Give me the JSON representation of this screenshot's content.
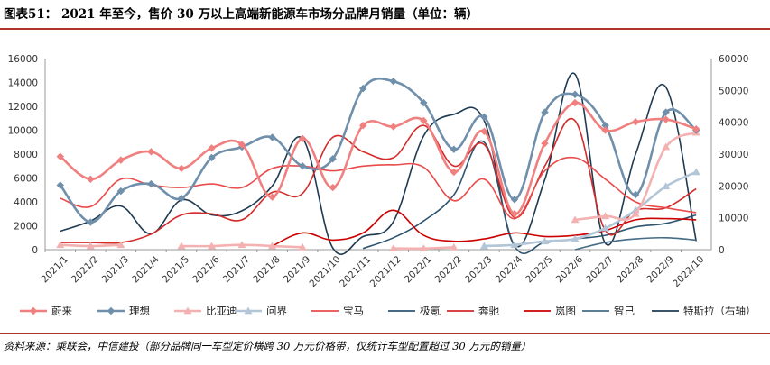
{
  "header": {
    "title": "图表51： 2021 年至今，售价 30 万以上高端新能源车市场分品牌月销量（单位：辆）"
  },
  "footer": {
    "source": "资料来源：乘联会，中信建投（部分品牌同一车型定价横跨 30 万元价格带，仅统计车型配置超过 30 万元的销量）"
  },
  "chart_data": {
    "type": "line",
    "title": "",
    "x": [
      "2021/1",
      "2021/2",
      "2021/3",
      "2021/4",
      "2021/5",
      "2021/6",
      "2021/7",
      "2021/8",
      "2021/9",
      "2021/10",
      "2021/11",
      "2021/12",
      "2022/1",
      "2022/2",
      "2022/3",
      "2022/4",
      "2022/5",
      "2022/6",
      "2022/7",
      "2022/8",
      "2022/9",
      "2022/10"
    ],
    "ylim_left": [
      0,
      16000
    ],
    "yticks_left": [
      "0",
      "2000",
      "4000",
      "6000",
      "8000",
      "10000",
      "12000",
      "14000",
      "16000"
    ],
    "ylim_right": [
      0,
      60000
    ],
    "yticks_right": [
      "0",
      "10000",
      "20000",
      "30000",
      "40000",
      "50000",
      "60000"
    ],
    "grid": false,
    "legend_position": "bottom",
    "series": [
      {
        "name": "蔚来",
        "color": "#f08080",
        "marker": "diamond",
        "axis": "left",
        "values": [
          7800,
          5900,
          7500,
          8200,
          6800,
          8500,
          8800,
          4400,
          9300,
          5200,
          10400,
          10300,
          10800,
          6500,
          9900,
          3000,
          8900,
          12300,
          10000,
          10700,
          10900,
          10100
        ]
      },
      {
        "name": "理想",
        "color": "#6f8faa",
        "marker": "diamond",
        "axis": "left",
        "values": [
          5400,
          2300,
          4900,
          5500,
          4300,
          7700,
          8600,
          9400,
          7000,
          7600,
          13500,
          14100,
          12300,
          8400,
          11100,
          4200,
          11500,
          13000,
          10400,
          4600,
          11500,
          10000
        ]
      },
      {
        "name": "比亚迪",
        "color": "#f4b1b1",
        "marker": "triangle",
        "axis": "left",
        "values": [
          400,
          300,
          400,
          null,
          300,
          300,
          400,
          300,
          200,
          null,
          null,
          100,
          100,
          200,
          null,
          null,
          null,
          2500,
          2800,
          3000,
          8600,
          9800
        ]
      },
      {
        "name": "问界",
        "color": "#b3c6d8",
        "marker": "triangle",
        "axis": "left",
        "values": [
          null,
          null,
          null,
          null,
          null,
          null,
          null,
          null,
          null,
          null,
          null,
          null,
          null,
          null,
          300,
          400,
          700,
          900,
          1800,
          3300,
          5300,
          6500
        ]
      },
      {
        "name": "宝马",
        "color": "#e94b4b",
        "marker": "none",
        "axis": "left",
        "values": [
          4300,
          3600,
          5900,
          5400,
          5200,
          5500,
          5200,
          6800,
          7000,
          6600,
          7000,
          7100,
          6900,
          4100,
          5900,
          2600,
          6600,
          7700,
          5900,
          4000,
          3500,
          3100
        ]
      },
      {
        "name": "极氪",
        "color": "#2e5470",
        "marker": "none",
        "axis": "left",
        "values": [
          null,
          null,
          null,
          null,
          null,
          null,
          null,
          null,
          null,
          null,
          100,
          1000,
          2400,
          4600,
          9000,
          300,
          600,
          900,
          1200,
          1900,
          2200,
          2900
        ]
      },
      {
        "name": "奔驰",
        "color": "#d42a2a",
        "marker": "none",
        "axis": "left",
        "values": [
          600,
          600,
          600,
          1300,
          2900,
          3000,
          2500,
          4800,
          4700,
          9400,
          8200,
          7700,
          10400,
          7000,
          8800,
          2700,
          7000,
          10800,
          1600,
          3300,
          3500,
          5100
        ]
      },
      {
        "name": "岚图",
        "color": "#cc0000",
        "marker": "none",
        "axis": "left",
        "values": [
          null,
          null,
          null,
          null,
          null,
          null,
          null,
          300,
          1400,
          800,
          1400,
          3300,
          1200,
          700,
          900,
          1400,
          1100,
          1200,
          1600,
          2500,
          2600,
          2500
        ]
      },
      {
        "name": "智己",
        "color": "#466c86",
        "marker": "none",
        "axis": "left",
        "values": [
          null,
          null,
          null,
          null,
          null,
          null,
          null,
          null,
          null,
          null,
          null,
          null,
          null,
          null,
          null,
          null,
          null,
          0,
          600,
          900,
          1000,
          800
        ]
      },
      {
        "name": "特斯拉（右轴）",
        "color": "#1f3b52",
        "marker": "none",
        "axis": "right",
        "values": [
          5800,
          9000,
          13700,
          5000,
          15600,
          10900,
          12200,
          20000,
          34900,
          500,
          4100,
          8800,
          35700,
          42500,
          40500,
          1400,
          22000,
          55100,
          2000,
          30000,
          51000,
          2700
        ]
      }
    ]
  }
}
